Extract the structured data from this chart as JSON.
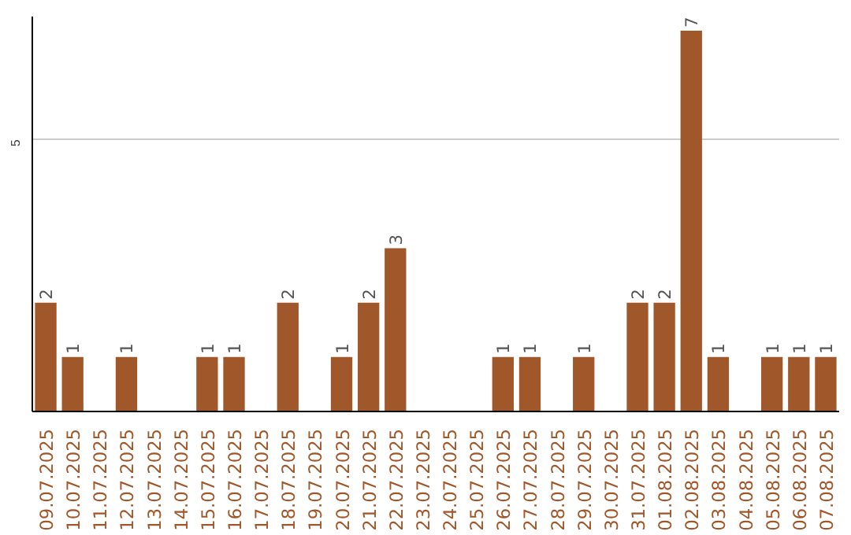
{
  "chart_data": {
    "type": "bar",
    "categories": [
      "09.07.2025",
      "10.07.2025",
      "11.07.2025",
      "12.07.2025",
      "13.07.2025",
      "14.07.2025",
      "15.07.2025",
      "16.07.2025",
      "17.07.2025",
      "18.07.2025",
      "19.07.2025",
      "20.07.2025",
      "21.07.2025",
      "22.07.2025",
      "23.07.2025",
      "24.07.2025",
      "25.07.2025",
      "26.07.2025",
      "27.07.2025",
      "28.07.2025",
      "29.07.2025",
      "30.07.2025",
      "31.07.2025",
      "01.08.2025",
      "02.08.2025",
      "03.08.2025",
      "04.08.2025",
      "05.08.2025",
      "06.08.2025",
      "07.08.2025"
    ],
    "values": [
      2,
      1,
      0,
      1,
      0,
      0,
      1,
      1,
      0,
      2,
      0,
      1,
      2,
      3,
      0,
      0,
      0,
      1,
      1,
      0,
      1,
      0,
      2,
      2,
      7,
      1,
      0,
      1,
      1,
      1
    ],
    "value_labels": [
      "2",
      "1",
      null,
      "1",
      null,
      null,
      "1",
      "1",
      null,
      "2",
      null,
      "1",
      "2",
      "3",
      null,
      null,
      null,
      "1",
      "1",
      null,
      "1",
      null,
      "2",
      "2",
      "7",
      "1",
      null,
      "1",
      "1",
      "1"
    ],
    "color": "#a0572a",
    "ylim": [
      0,
      7.26
    ],
    "yticks": [
      5
    ],
    "grid": "y"
  }
}
